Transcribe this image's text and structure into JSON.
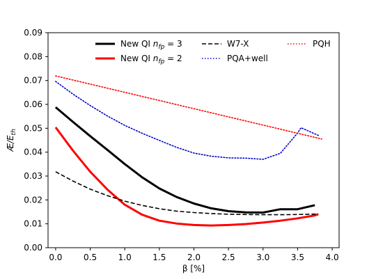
{
  "chart_data": {
    "type": "line",
    "xlabel": "β [%]",
    "ylabel": "Æ/E_th",
    "xlim": [
      -0.11,
      4.1
    ],
    "ylim": [
      0.0,
      0.09
    ],
    "xticks": [
      "0.0",
      "0.5",
      "1.0",
      "1.5",
      "2.0",
      "2.5",
      "3.0",
      "3.5",
      "4.0"
    ],
    "yticks": [
      "0.00",
      "0.01",
      "0.02",
      "0.03",
      "0.04",
      "0.05",
      "0.06",
      "0.07",
      "0.08",
      "0.09"
    ],
    "grid": false,
    "legend_placement": "top-right",
    "series": [
      {
        "name": "New QI n_fp = 3",
        "legend_main": "New QI ",
        "legend_var": "n",
        "legend_sub": "fp",
        "legend_tail": " = 3",
        "color": "#000000",
        "style": "solid",
        "x": [
          0.0,
          0.25,
          0.5,
          0.75,
          1.0,
          1.25,
          1.5,
          1.75,
          2.0,
          2.25,
          2.5,
          2.75,
          3.0,
          3.25,
          3.5,
          3.75
        ],
        "y": [
          0.0588,
          0.0527,
          0.0467,
          0.0409,
          0.035,
          0.0295,
          0.0248,
          0.0212,
          0.0185,
          0.0165,
          0.0153,
          0.0148,
          0.0147,
          0.0161,
          0.0161,
          0.0178
        ]
      },
      {
        "name": "New QI n_fp = 2",
        "legend_main": "New QI ",
        "legend_var": "n",
        "legend_sub": "fp",
        "legend_tail": " = 2",
        "color": "#ff0000",
        "style": "solid",
        "x": [
          0.0,
          0.25,
          0.5,
          0.75,
          1.0,
          1.25,
          1.5,
          1.75,
          2.0,
          2.25,
          2.5,
          2.75,
          3.0,
          3.25,
          3.5,
          3.75,
          3.8
        ],
        "y": [
          0.0504,
          0.0407,
          0.0318,
          0.0243,
          0.018,
          0.0138,
          0.0113,
          0.0101,
          0.0095,
          0.0093,
          0.0095,
          0.0099,
          0.0105,
          0.0113,
          0.0123,
          0.0135,
          0.014
        ]
      },
      {
        "name": "W7-X",
        "color": "#000000",
        "style": "dashed",
        "x": [
          0.0,
          0.25,
          0.5,
          0.75,
          1.0,
          1.25,
          1.5,
          1.75,
          2.0,
          2.25,
          2.5,
          2.75,
          3.0,
          3.25,
          3.5,
          3.8
        ],
        "y": [
          0.0318,
          0.0279,
          0.0245,
          0.0218,
          0.0195,
          0.0177,
          0.0163,
          0.0153,
          0.0147,
          0.0143,
          0.014,
          0.0139,
          0.0138,
          0.0138,
          0.0139,
          0.0141
        ]
      },
      {
        "name": "PQA+well",
        "color": "#0000cc",
        "style": "dotted",
        "x": [
          0.0,
          0.25,
          0.5,
          0.75,
          1.0,
          1.25,
          1.5,
          1.75,
          2.0,
          2.25,
          2.5,
          2.75,
          3.0,
          3.25,
          3.5,
          3.55,
          3.8
        ],
        "y": [
          0.0696,
          0.0643,
          0.0595,
          0.0551,
          0.0512,
          0.0479,
          0.0449,
          0.042,
          0.0396,
          0.0383,
          0.0376,
          0.0375,
          0.037,
          0.0395,
          0.048,
          0.0502,
          0.047
        ]
      },
      {
        "name": "PQH",
        "color": "#ff0000",
        "style": "dotted",
        "x": [
          0.0,
          3.85
        ],
        "y": [
          0.0719,
          0.0455
        ]
      }
    ]
  }
}
